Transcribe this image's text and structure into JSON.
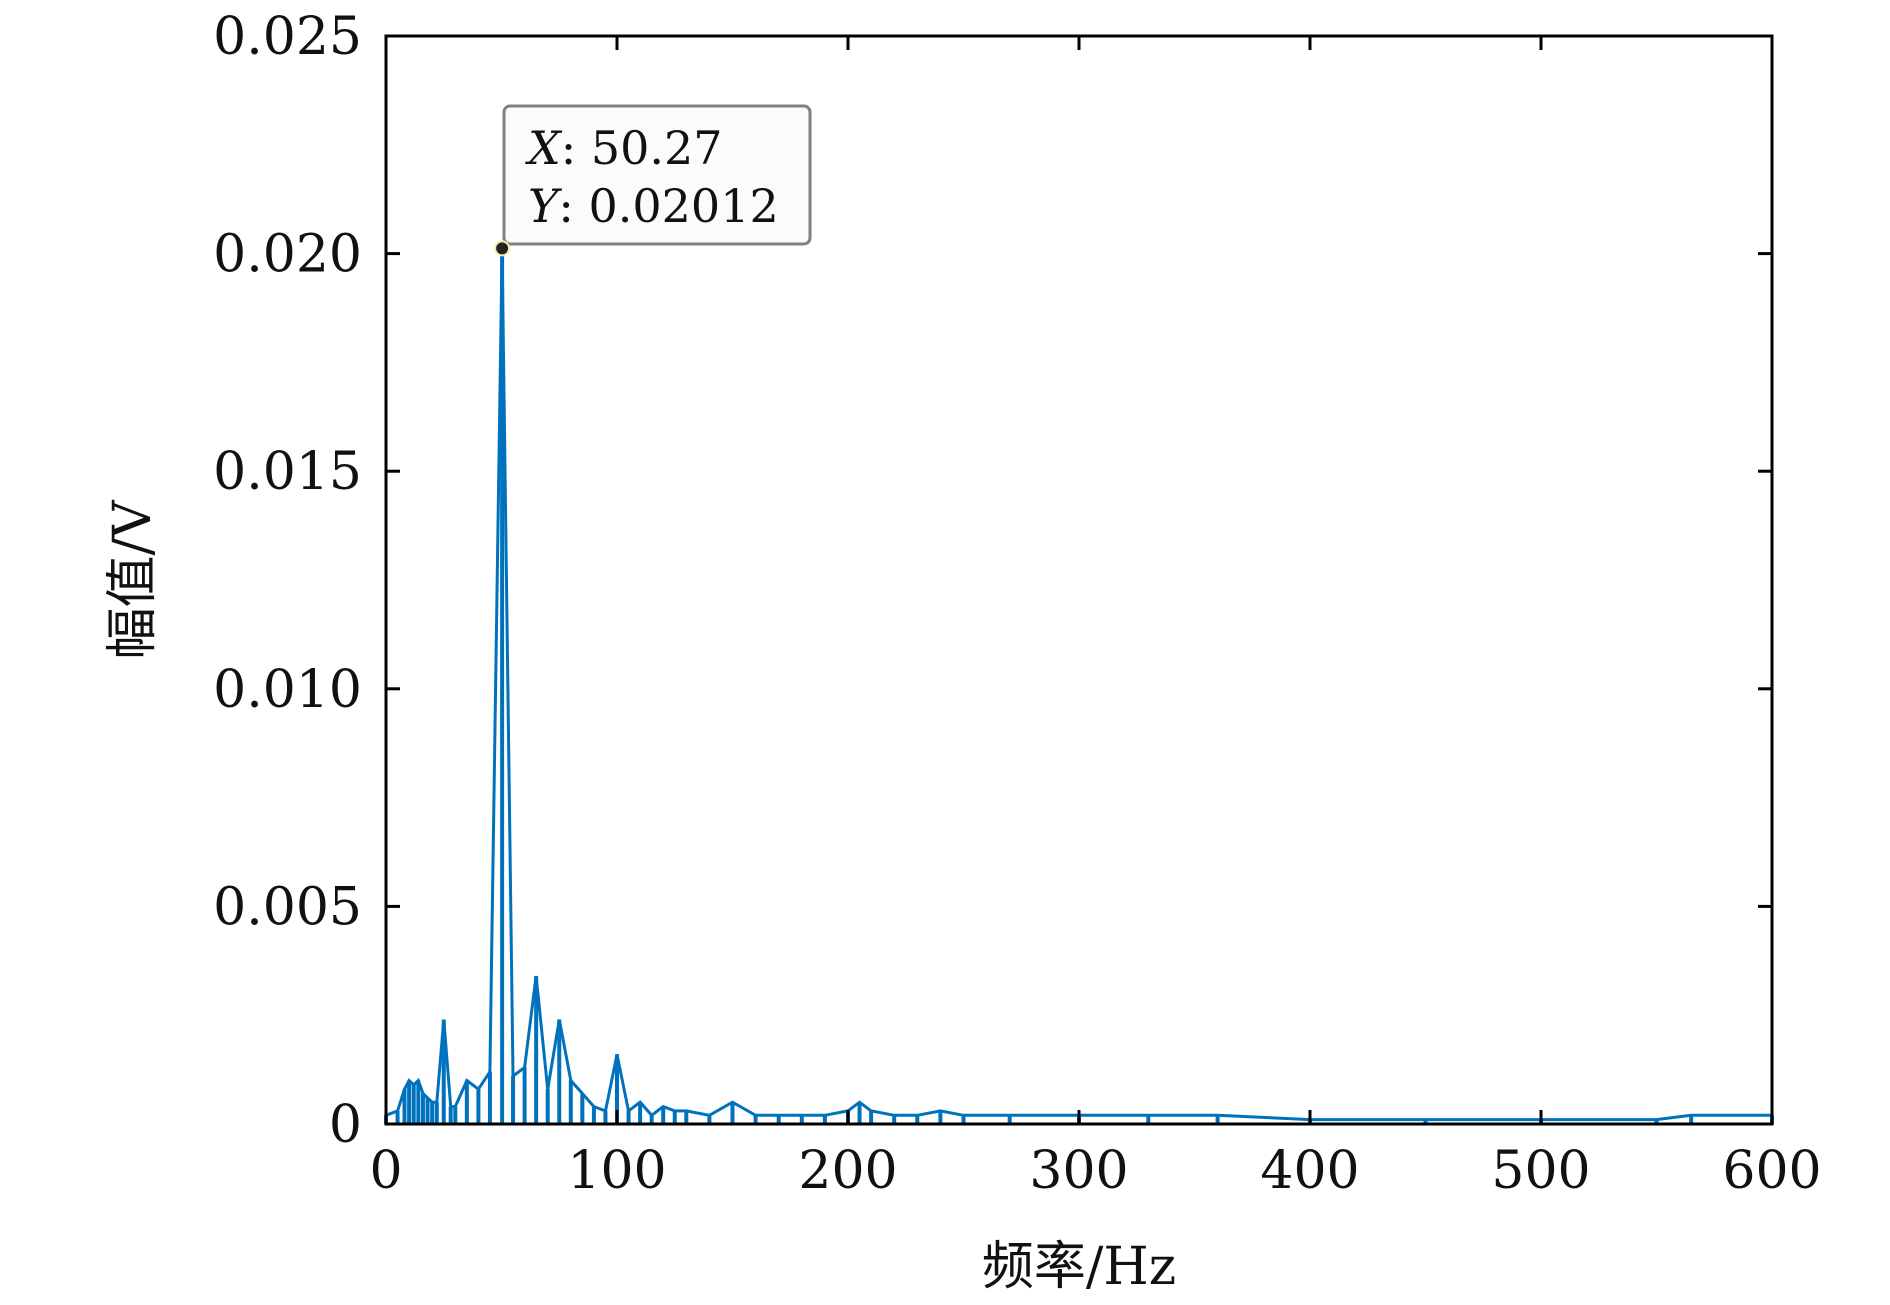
{
  "chart_data": {
    "type": "line",
    "xlabel": "频率/Hz",
    "ylabel": "幅值/V",
    "xlim": [
      0,
      600
    ],
    "ylim": [
      0,
      0.025
    ],
    "x_ticks": [
      "0",
      "100",
      "200",
      "300",
      "400",
      "500",
      "600"
    ],
    "y_ticks": [
      "0",
      "0.005",
      "0.010",
      "0.015",
      "0.020",
      "0.025"
    ],
    "grid": false,
    "color": "#0072BD",
    "series": [
      {
        "x": [
          0,
          5,
          8,
          10,
          12,
          14,
          16,
          18,
          20,
          22,
          25,
          28,
          30,
          35,
          40,
          45,
          50.27,
          55,
          60,
          65,
          70,
          75,
          80,
          85,
          90,
          95,
          100,
          105,
          110,
          115,
          120,
          125,
          130,
          140,
          150,
          160,
          170,
          180,
          190,
          200,
          205,
          210,
          220,
          230,
          240,
          250,
          270,
          300,
          330,
          360,
          400,
          450,
          500,
          550,
          565,
          600
        ],
        "y": [
          0.0002,
          0.0003,
          0.0008,
          0.001,
          0.0009,
          0.001,
          0.0007,
          0.0006,
          0.0005,
          0.0005,
          0.0024,
          0.0004,
          0.0004,
          0.001,
          0.0008,
          0.0012,
          0.02012,
          0.0011,
          0.0013,
          0.0034,
          0.0008,
          0.0024,
          0.001,
          0.0007,
          0.0004,
          0.0003,
          0.0016,
          0.0003,
          0.0005,
          0.0002,
          0.0004,
          0.0003,
          0.0003,
          0.0002,
          0.0005,
          0.0002,
          0.0002,
          0.0002,
          0.0002,
          0.0003,
          0.0005,
          0.0003,
          0.0002,
          0.0002,
          0.0003,
          0.0002,
          0.0002,
          0.0002,
          0.0002,
          0.0002,
          0.0001,
          0.0001,
          0.0001,
          0.0001,
          0.0002,
          0.0002
        ]
      }
    ],
    "datatip": {
      "x_label": "X",
      "x_value": "50.27",
      "y_label": "Y",
      "y_value": "0.02012",
      "x": 50.27,
      "y": 0.02012
    }
  }
}
